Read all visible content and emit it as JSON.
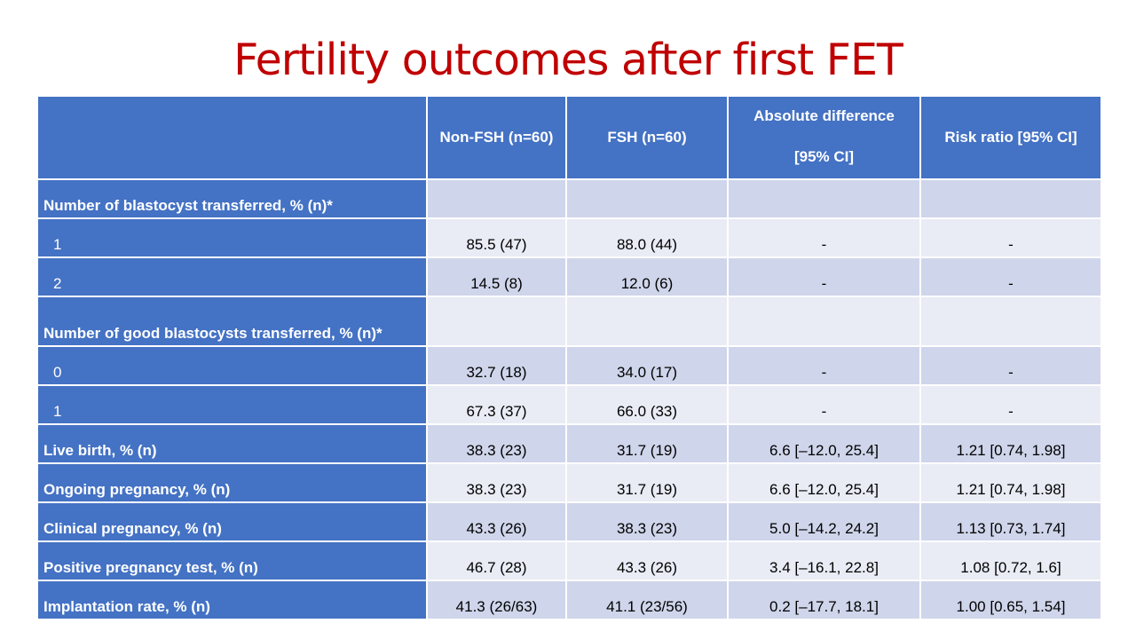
{
  "title": "Fertility outcomes after first FET",
  "table": {
    "headers": {
      "col0": "",
      "col1": "Non-FSH (n=60)",
      "col2": "FSH (n=60)",
      "col3_line1": "Absolute difference",
      "col3_line2": "[95% CI]",
      "col4": "Risk ratio [95% CI]"
    },
    "rows": [
      {
        "label": "Number of blastocyst transferred, % (n)*",
        "non_fsh": "",
        "fsh": "",
        "abs_diff": "",
        "risk_ratio": ""
      },
      {
        "label": "1",
        "non_fsh": "85.5 (47)",
        "fsh": "88.0 (44)",
        "abs_diff": "-",
        "risk_ratio": "-"
      },
      {
        "label": "2",
        "non_fsh": "14.5 (8)",
        "fsh": "12.0 (6)",
        "abs_diff": "-",
        "risk_ratio": "-"
      },
      {
        "label": "Number of good blastocysts transferred, % (n)*",
        "non_fsh": "",
        "fsh": "",
        "abs_diff": "",
        "risk_ratio": ""
      },
      {
        "label": "0",
        "non_fsh": "32.7 (18)",
        "fsh": "34.0 (17)",
        "abs_diff": "-",
        "risk_ratio": "-"
      },
      {
        "label": "1",
        "non_fsh": "67.3 (37)",
        "fsh": "66.0 (33)",
        "abs_diff": "-",
        "risk_ratio": "-"
      },
      {
        "label": "Live birth, % (n)",
        "non_fsh": "38.3 (23)",
        "fsh": "31.7 (19)",
        "abs_diff": "6.6 [–12.0, 25.4]",
        "risk_ratio": "1.21 [0.74, 1.98]"
      },
      {
        "label": "Ongoing pregnancy, % (n)",
        "non_fsh": "38.3 (23)",
        "fsh": "31.7 (19)",
        "abs_diff": "6.6 [–12.0, 25.4]",
        "risk_ratio": "1.21 [0.74, 1.98]"
      },
      {
        "label": "Clinical pregnancy, % (n)",
        "non_fsh": "43.3 (26)",
        "fsh": "38.3 (23)",
        "abs_diff": "5.0 [–14.2, 24.2]",
        "risk_ratio": "1.13 [0.73, 1.74]"
      },
      {
        "label": "Positive pregnancy test, % (n)",
        "non_fsh": "46.7 (28)",
        "fsh": "43.3 (26)",
        "abs_diff": "3.4 [–16.1, 22.8]",
        "risk_ratio": "1.08 [0.72, 1.6]"
      },
      {
        "label": "Implantation rate, % (n)",
        "non_fsh": "41.3 (26/63)",
        "fsh": "41.1 (23/56)",
        "abs_diff": "0.2 [–17.7, 18.1]",
        "risk_ratio": "1.00 [0.65, 1.54]"
      }
    ]
  },
  "colors": {
    "title": "#c00000",
    "header_bg": "#4472c4",
    "row_odd": "#cfd5ea",
    "row_even": "#e9ebf5"
  }
}
